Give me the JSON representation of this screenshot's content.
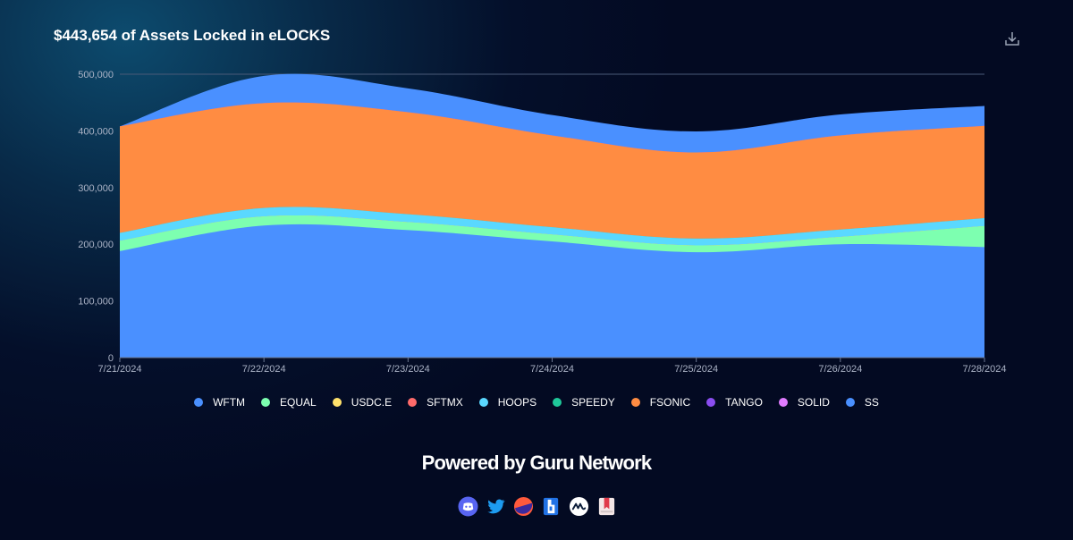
{
  "header": {
    "title": "$443,654 of Assets Locked in eLOCKS"
  },
  "icons": {
    "download": "download-icon"
  },
  "footer": {
    "powered_by": "Powered by Guru Network",
    "socials": [
      "discord-icon",
      "twitter-icon",
      "guru-icon",
      "defillama-icon",
      "coinmarketcap-icon",
      "docs-icon"
    ]
  },
  "chart_data": {
    "type": "area",
    "stacked": true,
    "x": [
      "7/21/2024",
      "7/22/2024",
      "7/23/2024",
      "7/24/2024",
      "7/25/2024",
      "7/26/2024",
      "7/28/2024"
    ],
    "ylim": [
      0,
      500000
    ],
    "yticks": [
      0,
      100000,
      200000,
      300000,
      400000,
      500000
    ],
    "ytick_labels": [
      "0",
      "100,000",
      "200,000",
      "300,000",
      "400,000",
      "500,000"
    ],
    "grid": true,
    "legend_position": "bottom",
    "legend": [
      "WFTM",
      "EQUAL",
      "USDC.E",
      "SFTMX",
      "HOOPS",
      "SPEEDY",
      "FSONIC",
      "TANGO",
      "SOLID",
      "SS"
    ],
    "colors": {
      "WFTM": "#4a90ff",
      "EQUAL": "#7dffb0",
      "USDC.E": "#ffe16b",
      "SFTMX": "#ff6b6b",
      "HOOPS": "#5ad8ff",
      "SPEEDY": "#1fc89a",
      "FSONIC": "#ff8c42",
      "TANGO": "#8a4df0",
      "SOLID": "#e07cff",
      "SS": "#4a90ff"
    },
    "series": [
      {
        "name": "WFTM",
        "values": [
          188000,
          233000,
          225000,
          205000,
          186000,
          200000,
          195000
        ]
      },
      {
        "name": "EQUAL",
        "values": [
          18000,
          16000,
          14000,
          12000,
          12000,
          13000,
          37000
        ]
      },
      {
        "name": "USDC.E",
        "values": [
          0,
          0,
          0,
          0,
          0,
          0,
          0
        ]
      },
      {
        "name": "SFTMX",
        "values": [
          0,
          0,
          0,
          0,
          0,
          0,
          0
        ]
      },
      {
        "name": "HOOPS",
        "values": [
          14000,
          15000,
          14000,
          13000,
          12000,
          13000,
          14000
        ]
      },
      {
        "name": "SPEEDY",
        "values": [
          0,
          0,
          0,
          0,
          0,
          0,
          0
        ]
      },
      {
        "name": "FSONIC",
        "values": [
          188000,
          185000,
          180000,
          162000,
          152000,
          166000,
          163000
        ]
      },
      {
        "name": "TANGO",
        "values": [
          0,
          0,
          0,
          0,
          0,
          0,
          0
        ]
      },
      {
        "name": "SOLID",
        "values": [
          0,
          0,
          0,
          0,
          0,
          0,
          0
        ]
      },
      {
        "name": "SS",
        "values": [
          0,
          48000,
          42000,
          36000,
          37000,
          37000,
          35000
        ]
      }
    ]
  }
}
